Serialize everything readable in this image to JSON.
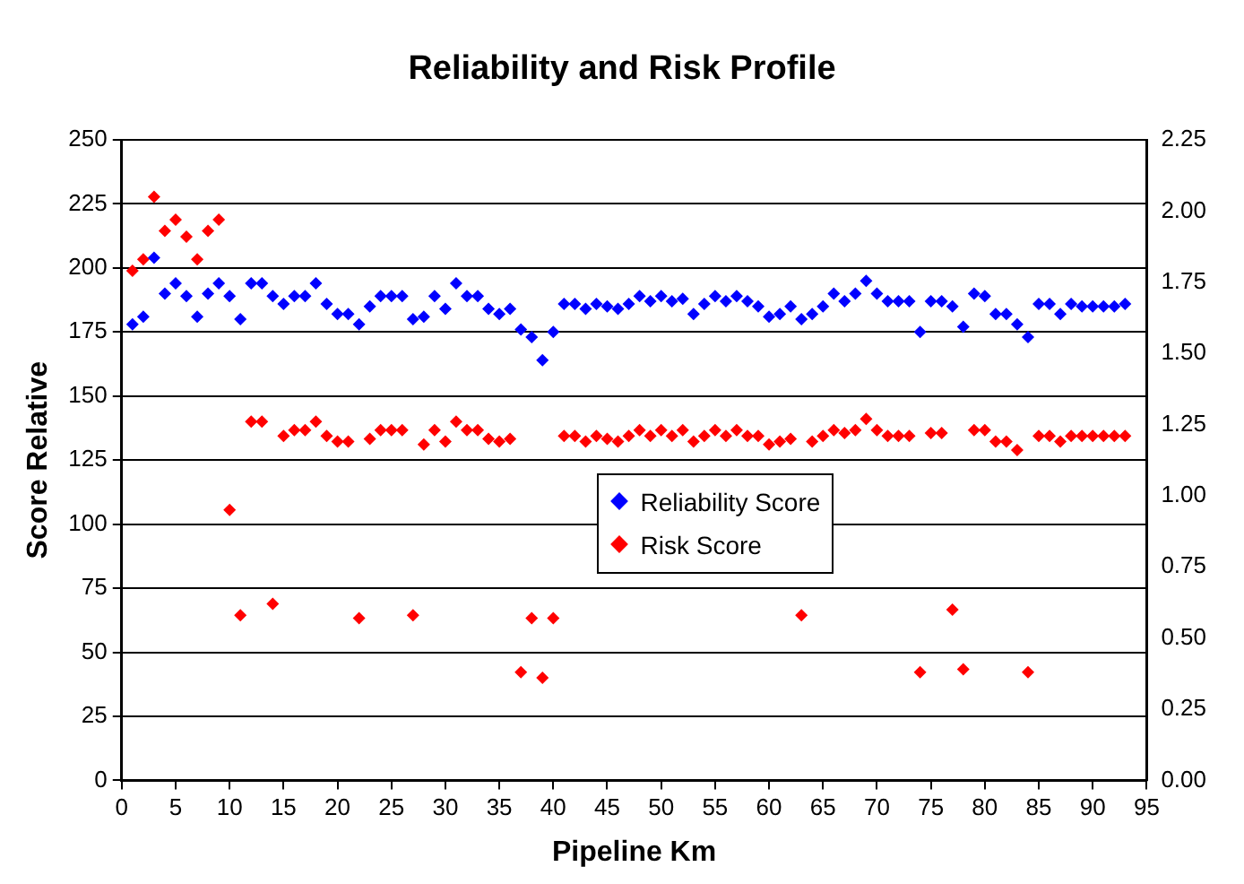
{
  "chart_data": {
    "type": "scatter",
    "title": "Reliability and Risk Profile",
    "xlabel": "Pipeline Km",
    "ylabel": "Score Relative",
    "x": [
      1,
      2,
      3,
      4,
      5,
      6,
      7,
      8,
      9,
      10,
      11,
      12,
      13,
      14,
      15,
      16,
      17,
      18,
      19,
      20,
      21,
      22,
      23,
      24,
      25,
      26,
      27,
      28,
      29,
      30,
      31,
      32,
      33,
      34,
      35,
      36,
      37,
      38,
      39,
      40,
      41,
      42,
      43,
      44,
      45,
      46,
      47,
      48,
      49,
      50,
      51,
      52,
      53,
      54,
      55,
      56,
      57,
      58,
      59,
      60,
      61,
      62,
      63,
      64,
      65,
      66,
      67,
      68,
      69,
      70,
      71,
      72,
      73,
      74,
      75,
      76,
      77,
      78,
      79,
      80,
      81,
      82,
      83,
      84,
      85,
      86,
      87,
      88,
      89,
      90,
      91,
      92,
      93
    ],
    "series": [
      {
        "name": "Reliability Score",
        "color": "#0000ff",
        "values": [
          178,
          181,
          204,
          190,
          194,
          189,
          181,
          190,
          194,
          189,
          180,
          194,
          194,
          189,
          186,
          189,
          189,
          194,
          186,
          182,
          182,
          178,
          185,
          189,
          189,
          189,
          180,
          181,
          189,
          184,
          194,
          189,
          189,
          184,
          182,
          184,
          176,
          173,
          164,
          175,
          186,
          186,
          184,
          186,
          185,
          184,
          186,
          189,
          187,
          189,
          187,
          188,
          182,
          186,
          189,
          187,
          189,
          187,
          185,
          181,
          182,
          185,
          180,
          182,
          185,
          190,
          187,
          190,
          195,
          190,
          187,
          187,
          187,
          175,
          187,
          187,
          185,
          177,
          190,
          189,
          182,
          182,
          178,
          173,
          186,
          186,
          182,
          186,
          185,
          185,
          185,
          185,
          186
        ]
      },
      {
        "name": "Risk Score",
        "color": "#ff0000",
        "axis": "y2",
        "values": [
          1.79,
          1.83,
          2.05,
          1.93,
          1.97,
          1.91,
          1.83,
          1.93,
          1.97,
          0.95,
          0.58,
          1.26,
          1.26,
          0.62,
          1.21,
          1.23,
          1.23,
          1.26,
          1.21,
          1.19,
          1.19,
          0.57,
          1.2,
          1.23,
          1.23,
          1.23,
          0.58,
          1.18,
          1.23,
          1.19,
          1.26,
          1.23,
          1.23,
          1.2,
          1.19,
          1.2,
          0.38,
          0.57,
          0.36,
          0.57,
          1.21,
          1.21,
          1.19,
          1.21,
          1.2,
          1.19,
          1.21,
          1.23,
          1.21,
          1.23,
          1.21,
          1.23,
          1.19,
          1.21,
          1.23,
          1.21,
          1.23,
          1.21,
          1.21,
          1.18,
          1.19,
          1.2,
          0.58,
          1.19,
          1.21,
          1.23,
          1.22,
          1.23,
          1.27,
          1.23,
          1.21,
          1.21,
          1.21,
          0.38,
          1.22,
          1.22,
          0.6,
          0.39,
          1.23,
          1.23,
          1.19,
          1.19,
          1.16,
          0.38,
          1.21,
          1.21,
          1.19,
          1.21,
          1.21,
          1.21,
          1.21,
          1.21,
          1.21
        ]
      }
    ],
    "xlim": [
      0,
      95
    ],
    "xticks": [
      0,
      5,
      10,
      15,
      20,
      25,
      30,
      35,
      40,
      45,
      50,
      55,
      60,
      65,
      70,
      75,
      80,
      85,
      90,
      95
    ],
    "ylim": [
      0,
      250
    ],
    "yticks": [
      0,
      25,
      50,
      75,
      100,
      125,
      150,
      175,
      200,
      225,
      250
    ],
    "y2lim": [
      0,
      2.25
    ],
    "y2ticks": [
      {
        "value": 0,
        "label": "0.00"
      },
      {
        "value": 0.25,
        "label": "0.25"
      },
      {
        "value": 0.5,
        "label": "0.50"
      },
      {
        "value": 0.75,
        "label": "0.75"
      },
      {
        "value": 1,
        "label": "1.00"
      },
      {
        "value": 1.25,
        "label": "1.25"
      },
      {
        "value": 1.5,
        "label": "1.50"
      },
      {
        "value": 1.75,
        "label": "1.75"
      },
      {
        "value": 2,
        "label": "2.00"
      },
      {
        "value": 2.25,
        "label": "2.25"
      }
    ],
    "grid": "y",
    "legend": "center",
    "marker": "diamond"
  }
}
